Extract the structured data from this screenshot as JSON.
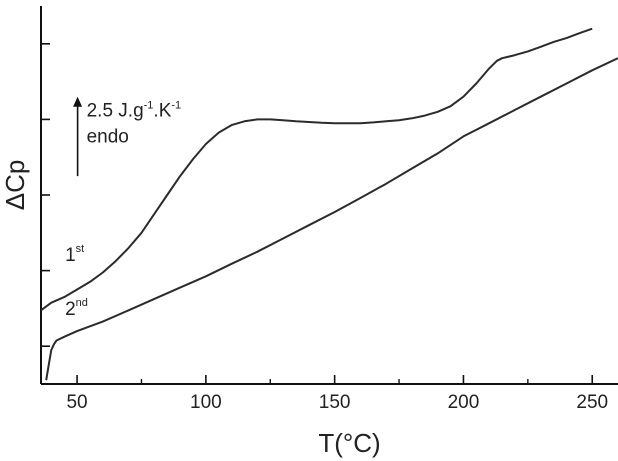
{
  "chart_data": {
    "type": "line",
    "xlabel": "T(°C)",
    "ylabel": "ΔCp",
    "xlim": [
      36,
      260
    ],
    "xticks": [
      50,
      100,
      150,
      200,
      250
    ],
    "xtick_labels": [
      "50",
      "100",
      "150",
      "200",
      "250"
    ],
    "xminor": [
      75,
      125,
      175,
      225
    ],
    "ylim": [
      0,
      10
    ],
    "yticks": [
      1.0,
      3.0,
      5.0,
      7.0,
      9.0
    ],
    "ytick_labels": [
      "",
      "",
      "",
      "",
      ""
    ],
    "grid": false,
    "line_color": "#2b2b2b",
    "series": [
      {
        "name": "1st",
        "label_main": "1",
        "label_sup": "st",
        "label_at": [
          50,
          3.25
        ],
        "x": [
          36,
          40,
          45,
          50,
          55,
          60,
          65,
          70,
          75,
          80,
          85,
          90,
          95,
          100,
          105,
          110,
          115,
          120,
          125,
          130,
          135,
          140,
          145,
          150,
          155,
          160,
          165,
          170,
          175,
          180,
          185,
          190,
          195,
          200,
          205,
          210,
          213,
          215,
          217,
          220,
          225,
          230,
          235,
          240,
          245,
          250
        ],
        "y": [
          1.95,
          2.15,
          2.3,
          2.5,
          2.7,
          2.95,
          3.25,
          3.6,
          4.0,
          4.5,
          5.0,
          5.5,
          5.95,
          6.35,
          6.65,
          6.85,
          6.95,
          7.0,
          7.0,
          6.98,
          6.95,
          6.93,
          6.91,
          6.9,
          6.9,
          6.9,
          6.92,
          6.95,
          6.98,
          7.03,
          7.1,
          7.2,
          7.35,
          7.6,
          7.95,
          8.35,
          8.55,
          8.62,
          8.65,
          8.7,
          8.8,
          8.92,
          9.05,
          9.15,
          9.28,
          9.4
        ]
      },
      {
        "name": "2nd",
        "label_main": "2",
        "label_sup": "nd",
        "label_at": [
          50,
          1.82
        ],
        "x": [
          38,
          39,
          40,
          41,
          42,
          45,
          50,
          60,
          70,
          80,
          90,
          100,
          110,
          120,
          130,
          140,
          150,
          160,
          170,
          180,
          190,
          200,
          210,
          220,
          230,
          240,
          250,
          260
        ],
        "y": [
          0.1,
          0.5,
          0.9,
          1.05,
          1.15,
          1.25,
          1.4,
          1.65,
          1.95,
          2.25,
          2.55,
          2.85,
          3.18,
          3.5,
          3.85,
          4.2,
          4.55,
          4.92,
          5.3,
          5.7,
          6.1,
          6.55,
          6.9,
          7.25,
          7.6,
          7.95,
          8.3,
          8.62
        ]
      }
    ],
    "annotation": {
      "scale_bar_label_prefix": "2.5 J.g",
      "scale_bar_sup1": "-1",
      "scale_bar_mid": ".K",
      "scale_bar_sup2": "-1",
      "direction_label": "endo",
      "arrow_from": [
        44,
        5.5
      ],
      "arrow_to": [
        44,
        7.6
      ]
    }
  }
}
